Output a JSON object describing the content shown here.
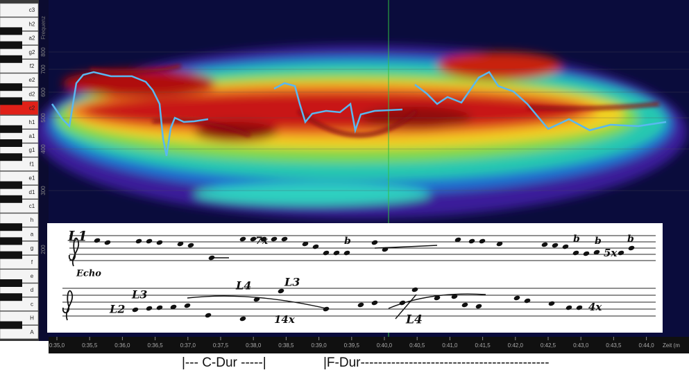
{
  "keyboard": {
    "keys": [
      {
        "label": "c3"
      },
      {
        "label": "h2"
      },
      {
        "label": "a2"
      },
      {
        "label": "g2"
      },
      {
        "label": "f2"
      },
      {
        "label": "e2"
      },
      {
        "label": "d2"
      },
      {
        "label": "c2",
        "color": "#e02018"
      },
      {
        "label": "h1"
      },
      {
        "label": "a1"
      },
      {
        "label": "g1"
      },
      {
        "label": "f1"
      },
      {
        "label": "e1"
      },
      {
        "label": "d1"
      },
      {
        "label": "c1"
      },
      {
        "label": "h"
      },
      {
        "label": "a"
      },
      {
        "label": "g"
      },
      {
        "label": "f"
      },
      {
        "label": "e"
      },
      {
        "label": "d"
      },
      {
        "label": "c"
      },
      {
        "label": "H"
      },
      {
        "label": "A"
      }
    ]
  },
  "frequency_axis": {
    "title": "Frequenz",
    "labels": [
      "800",
      "700",
      "600",
      "500",
      "400",
      "300",
      "200"
    ]
  },
  "time_axis": {
    "labels": [
      "0:35,0",
      "0:35,5",
      "0:36,0",
      "0:36,5",
      "0:37,0",
      "0:37,5",
      "0:38,0",
      "0:38,5",
      "0:39,0",
      "0:39,5",
      "0:40,0",
      "0:40,5",
      "0:41,0",
      "0:41,5",
      "0:42,0",
      "0:42,5",
      "0:43,0",
      "0:43,5",
      "0:44,0"
    ],
    "title": "Zeit (m"
  },
  "score": {
    "annotations": [
      "L1",
      "Echo",
      "7x",
      "b",
      "b",
      "b",
      "b",
      "5x",
      "L3",
      "L2",
      "L4",
      "L3",
      "14x",
      "L4",
      "4x"
    ]
  },
  "footer": {
    "c_dur": "|--- C-Dur -----|",
    "f_dur": "|F-Dur-------------------------------------------"
  }
}
